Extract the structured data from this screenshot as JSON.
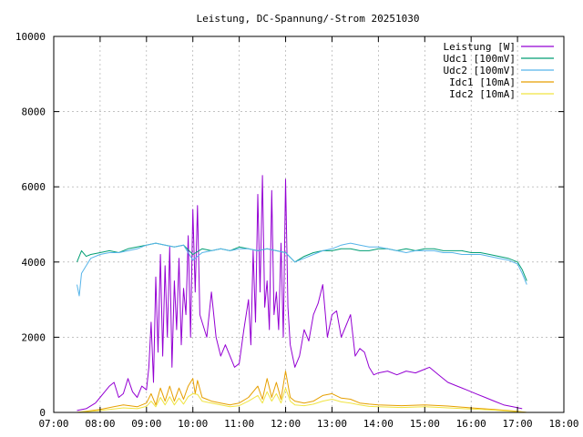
{
  "chart_data": {
    "type": "line",
    "title": "Leistung, DC-Spannung/-Strom 20251030",
    "xlabel": "",
    "ylabel": "",
    "xlim": [
      7.0,
      18.0
    ],
    "ylim": [
      0,
      10000
    ],
    "x_ticks": [
      "07:00",
      "08:00",
      "09:00",
      "10:00",
      "11:00",
      "12:00",
      "13:00",
      "14:00",
      "15:00",
      "16:00",
      "17:00",
      "18:00"
    ],
    "y_ticks": [
      "0",
      "2000",
      "4000",
      "6000",
      "8000",
      "10000"
    ],
    "grid": true,
    "legend_position": "top-right",
    "series": [
      {
        "name": "Leistung [W]",
        "color": "#9400d3",
        "x": [
          7.5,
          7.7,
          7.9,
          8.0,
          8.1,
          8.2,
          8.3,
          8.4,
          8.5,
          8.6,
          8.7,
          8.8,
          8.9,
          9.0,
          9.05,
          9.1,
          9.15,
          9.2,
          9.25,
          9.3,
          9.35,
          9.4,
          9.45,
          9.5,
          9.55,
          9.6,
          9.65,
          9.7,
          9.75,
          9.8,
          9.85,
          9.9,
          9.95,
          10.0,
          10.05,
          10.1,
          10.15,
          10.2,
          10.3,
          10.4,
          10.5,
          10.6,
          10.7,
          10.8,
          10.9,
          11.0,
          11.1,
          11.2,
          11.25,
          11.3,
          11.35,
          11.4,
          11.45,
          11.5,
          11.55,
          11.6,
          11.65,
          11.7,
          11.75,
          11.8,
          11.85,
          11.9,
          11.95,
          12.0,
          12.05,
          12.1,
          12.2,
          12.3,
          12.4,
          12.5,
          12.6,
          12.7,
          12.8,
          12.9,
          13.0,
          13.1,
          13.2,
          13.3,
          13.4,
          13.5,
          13.6,
          13.7,
          13.8,
          13.9,
          14.0,
          14.2,
          14.4,
          14.6,
          14.8,
          15.0,
          15.1,
          15.3,
          15.5,
          15.7,
          15.9,
          16.1,
          16.3,
          16.5,
          16.7,
          16.9,
          17.1
        ],
        "y": [
          50,
          100,
          250,
          400,
          550,
          700,
          800,
          400,
          500,
          900,
          550,
          400,
          700,
          600,
          1200,
          2400,
          800,
          3600,
          1600,
          4200,
          1500,
          3900,
          2000,
          4400,
          1200,
          3500,
          2200,
          4100,
          1800,
          3300,
          2600,
          4700,
          2000,
          5400,
          3200,
          5500,
          2600,
          2400,
          2000,
          3200,
          2000,
          1500,
          1800,
          1500,
          1200,
          1300,
          2200,
          3000,
          1800,
          4300,
          2400,
          5800,
          3200,
          6300,
          2800,
          3500,
          2200,
          5900,
          2600,
          3200,
          2200,
          4500,
          2000,
          6200,
          2800,
          1800,
          1200,
          1500,
          2200,
          1900,
          2600,
          2900,
          3400,
          2000,
          2600,
          2700,
          2000,
          2300,
          2600,
          1500,
          1700,
          1600,
          1200,
          1000,
          1050,
          1100,
          1000,
          1100,
          1050,
          1150,
          1200,
          1000,
          800,
          700,
          600,
          500,
          400,
          300,
          200,
          150,
          100
        ]
      },
      {
        "name": "Udc1 [100mV]",
        "color": "#009e73",
        "x": [
          7.5,
          7.6,
          7.7,
          7.8,
          8.0,
          8.2,
          8.4,
          8.6,
          8.8,
          9.0,
          9.2,
          9.4,
          9.6,
          9.8,
          10.0,
          10.2,
          10.4,
          10.6,
          10.8,
          11.0,
          11.2,
          11.4,
          11.6,
          11.8,
          12.0,
          12.2,
          12.4,
          12.6,
          12.8,
          13.0,
          13.2,
          13.4,
          13.6,
          13.8,
          14.0,
          14.2,
          14.4,
          14.6,
          14.8,
          15.0,
          15.2,
          15.4,
          15.6,
          15.8,
          16.0,
          16.2,
          16.4,
          16.6,
          16.8,
          17.0,
          17.1,
          17.2
        ],
        "y": [
          4000,
          4300,
          4150,
          4200,
          4250,
          4300,
          4250,
          4350,
          4400,
          4450,
          4500,
          4450,
          4400,
          4450,
          4200,
          4350,
          4300,
          4350,
          4300,
          4400,
          4350,
          4300,
          4350,
          4300,
          4250,
          4000,
          4150,
          4250,
          4300,
          4300,
          4350,
          4350,
          4300,
          4300,
          4350,
          4350,
          4300,
          4350,
          4300,
          4350,
          4350,
          4300,
          4300,
          4300,
          4250,
          4250,
          4200,
          4150,
          4100,
          4000,
          3800,
          3500
        ]
      },
      {
        "name": "Udc2 [100mV]",
        "color": "#56b4e9",
        "x": [
          7.5,
          7.55,
          7.6,
          7.7,
          7.8,
          8.0,
          8.2,
          8.4,
          8.6,
          8.8,
          9.0,
          9.2,
          9.4,
          9.6,
          9.8,
          10.0,
          10.2,
          10.4,
          10.6,
          10.8,
          11.0,
          11.2,
          11.4,
          11.6,
          11.8,
          12.0,
          12.2,
          12.4,
          12.6,
          12.8,
          13.0,
          13.2,
          13.4,
          13.6,
          13.8,
          14.0,
          14.2,
          14.4,
          14.6,
          14.8,
          15.0,
          15.2,
          15.4,
          15.6,
          15.8,
          16.0,
          16.2,
          16.4,
          16.6,
          16.8,
          17.0,
          17.1,
          17.2
        ],
        "y": [
          3400,
          3100,
          3700,
          3900,
          4100,
          4200,
          4250,
          4250,
          4300,
          4350,
          4450,
          4500,
          4450,
          4400,
          4450,
          4050,
          4250,
          4300,
          4350,
          4300,
          4350,
          4350,
          4300,
          4350,
          4300,
          4250,
          4000,
          4100,
          4200,
          4300,
          4350,
          4450,
          4500,
          4450,
          4400,
          4400,
          4350,
          4300,
          4250,
          4300,
          4300,
          4300,
          4250,
          4250,
          4200,
          4200,
          4200,
          4150,
          4100,
          4050,
          3950,
          3700,
          3400
        ]
      },
      {
        "name": "Idc1 [10mA]",
        "color": "#e69f00",
        "x": [
          7.5,
          8.0,
          8.5,
          8.8,
          9.0,
          9.1,
          9.2,
          9.3,
          9.4,
          9.5,
          9.6,
          9.7,
          9.8,
          9.9,
          10.0,
          10.05,
          10.1,
          10.2,
          10.3,
          10.4,
          10.6,
          10.8,
          11.0,
          11.2,
          11.4,
          11.5,
          11.6,
          11.7,
          11.8,
          11.9,
          12.0,
          12.1,
          12.2,
          12.4,
          12.6,
          12.8,
          13.0,
          13.2,
          13.4,
          13.6,
          13.8,
          14.0,
          14.5,
          15.0,
          15.5,
          16.0,
          16.5,
          17.0,
          17.2
        ],
        "y": [
          0,
          80,
          200,
          150,
          250,
          500,
          200,
          650,
          300,
          700,
          300,
          650,
          350,
          700,
          900,
          500,
          850,
          400,
          350,
          300,
          250,
          200,
          250,
          400,
          700,
          350,
          900,
          400,
          800,
          350,
          1100,
          400,
          300,
          250,
          300,
          450,
          500,
          380,
          350,
          250,
          220,
          200,
          180,
          200,
          170,
          120,
          80,
          30,
          0
        ]
      },
      {
        "name": "Idc2 [10mA]",
        "color": "#f0e442",
        "x": [
          7.5,
          8.0,
          8.5,
          8.8,
          9.0,
          9.1,
          9.2,
          9.3,
          9.4,
          9.5,
          9.6,
          9.7,
          9.8,
          9.9,
          10.0,
          10.1,
          10.2,
          10.4,
          10.6,
          10.8,
          11.0,
          11.2,
          11.4,
          11.5,
          11.6,
          11.7,
          11.8,
          11.9,
          12.0,
          12.1,
          12.2,
          12.4,
          12.6,
          12.8,
          13.0,
          13.2,
          13.4,
          13.6,
          13.8,
          14.0,
          14.5,
          15.0,
          15.5,
          16.0,
          16.5,
          17.0,
          17.2
        ],
        "y": [
          0,
          50,
          120,
          100,
          160,
          300,
          150,
          400,
          200,
          420,
          200,
          380,
          220,
          420,
          500,
          480,
          300,
          250,
          200,
          150,
          180,
          300,
          450,
          250,
          550,
          300,
          500,
          250,
          650,
          300,
          200,
          180,
          220,
          300,
          350,
          280,
          250,
          200,
          160,
          150,
          130,
          150,
          120,
          90,
          60,
          20,
          0
        ]
      }
    ]
  }
}
